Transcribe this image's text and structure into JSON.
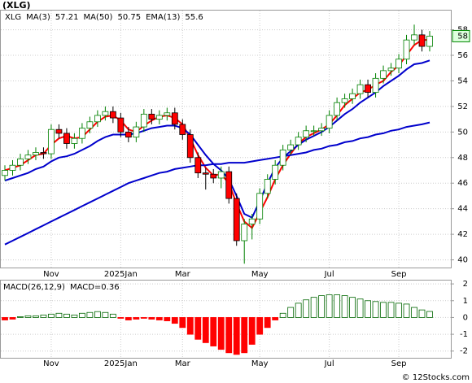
{
  "chart_data": [
    {
      "type": "candlestick",
      "title": "(XLG)",
      "symbol": "XLG",
      "categories": [
        null,
        null,
        null,
        null,
        null,
        null,
        "Nov",
        null,
        null,
        null,
        null,
        null,
        null,
        null,
        null,
        "2025Jan",
        null,
        null,
        null,
        null,
        null,
        null,
        null,
        "Mar",
        null,
        null,
        null,
        null,
        null,
        null,
        null,
        null,
        null,
        "May",
        null,
        null,
        null,
        null,
        null,
        null,
        null,
        null,
        "Jul",
        null,
        null,
        null,
        null,
        null,
        null,
        null,
        null,
        "Sep",
        null,
        null,
        null,
        null
      ],
      "open": [
        46.6,
        47.0,
        47.4,
        47.9,
        48.2,
        48.4,
        48.3,
        50.2,
        49.9,
        49.1,
        49.5,
        50.3,
        50.8,
        51.3,
        51.6,
        51.1,
        50.0,
        49.6,
        50.4,
        51.4,
        51.0,
        51.3,
        51.5,
        50.6,
        49.8,
        48.0,
        46.8,
        46.7,
        46.4,
        46.9,
        44.8,
        41.5,
        42.8,
        43.2,
        45.2,
        46.3,
        47.4,
        48.6,
        49.0,
        49.6,
        50.1,
        50.1,
        50.3,
        51.3,
        52.3,
        52.6,
        53.0,
        53.7,
        53.1,
        54.2,
        54.8,
        55.0,
        55.7,
        57.2,
        57.6,
        56.7
      ],
      "high": [
        47.4,
        47.8,
        48.3,
        48.6,
        48.8,
        48.8,
        50.6,
        50.6,
        50.3,
        49.9,
        50.7,
        51.2,
        51.7,
        52.0,
        52.0,
        51.5,
        50.4,
        50.8,
        51.8,
        51.8,
        51.7,
        51.9,
        51.9,
        51.0,
        50.2,
        48.4,
        47.2,
        47.1,
        47.3,
        47.3,
        45.2,
        43.2,
        43.6,
        45.6,
        46.7,
        47.8,
        49.0,
        49.4,
        50.0,
        50.5,
        50.5,
        50.7,
        51.7,
        52.7,
        53.0,
        53.4,
        54.1,
        54.1,
        54.6,
        55.2,
        55.4,
        56.1,
        57.6,
        58.4,
        58.0,
        57.9
      ],
      "low": [
        46.2,
        46.6,
        47.0,
        47.5,
        47.8,
        47.9,
        47.9,
        49.5,
        48.7,
        48.7,
        49.1,
        49.9,
        50.4,
        50.9,
        50.7,
        49.6,
        49.2,
        49.2,
        50.0,
        50.6,
        50.6,
        50.9,
        50.2,
        49.4,
        47.6,
        46.4,
        45.5,
        46.0,
        45.6,
        44.4,
        41.1,
        39.7,
        41.6,
        42.8,
        44.8,
        45.9,
        47.0,
        48.2,
        48.6,
        49.2,
        49.7,
        49.7,
        49.9,
        50.9,
        51.9,
        52.2,
        52.6,
        52.7,
        52.7,
        53.8,
        54.4,
        54.6,
        55.3,
        56.8,
        56.3,
        56.3
      ],
      "close": [
        47.0,
        47.4,
        47.9,
        48.2,
        48.4,
        48.3,
        50.2,
        49.9,
        49.1,
        49.5,
        50.3,
        50.8,
        51.3,
        51.6,
        51.1,
        50.0,
        49.6,
        50.4,
        51.4,
        51.0,
        51.3,
        51.5,
        50.6,
        49.8,
        48.0,
        46.8,
        46.7,
        46.4,
        46.9,
        44.8,
        41.5,
        42.8,
        43.2,
        45.2,
        46.3,
        47.4,
        48.6,
        49.0,
        49.6,
        50.1,
        50.1,
        50.3,
        51.3,
        52.3,
        52.6,
        53.0,
        53.7,
        53.1,
        54.2,
        54.8,
        55.0,
        55.7,
        57.2,
        57.6,
        56.7,
        57.5
      ],
      "up_color": "#008000",
      "down_color": "#ff0000",
      "series": [
        {
          "name": "MA(3)",
          "current": 57.21,
          "color": "#ff0000",
          "values": [
            47.0,
            47.2,
            47.4,
            47.8,
            48.2,
            48.3,
            49.0,
            49.5,
            49.7,
            49.5,
            49.6,
            50.2,
            50.8,
            51.2,
            51.3,
            50.9,
            50.2,
            50.0,
            50.5,
            50.9,
            51.2,
            51.3,
            51.1,
            50.6,
            49.5,
            48.2,
            47.2,
            46.6,
            46.7,
            46.0,
            44.4,
            43.0,
            42.5,
            43.7,
            44.9,
            46.3,
            47.4,
            48.3,
            49.1,
            49.6,
            49.9,
            50.2,
            50.6,
            51.3,
            52.1,
            52.6,
            53.1,
            53.3,
            53.7,
            54.0,
            54.7,
            55.2,
            56.0,
            56.8,
            57.2,
            57.21
          ]
        },
        {
          "name": "MA(50)",
          "current": 50.75,
          "color": "#0000cc",
          "values": [
            41.2,
            41.5,
            41.8,
            42.1,
            42.4,
            42.7,
            43.0,
            43.3,
            43.6,
            43.9,
            44.2,
            44.5,
            44.8,
            45.1,
            45.4,
            45.7,
            46.0,
            46.2,
            46.4,
            46.6,
            46.8,
            46.9,
            47.1,
            47.2,
            47.3,
            47.4,
            47.4,
            47.5,
            47.5,
            47.6,
            47.6,
            47.6,
            47.7,
            47.8,
            47.9,
            48.0,
            48.1,
            48.2,
            48.3,
            48.4,
            48.6,
            48.7,
            48.9,
            49.0,
            49.2,
            49.3,
            49.5,
            49.6,
            49.8,
            49.9,
            50.1,
            50.2,
            50.4,
            50.5,
            50.6,
            50.75
          ]
        },
        {
          "name": "EMA(13)",
          "current": 55.6,
          "color": "#0000cc",
          "values": [
            46.2,
            46.4,
            46.6,
            46.8,
            47.1,
            47.3,
            47.7,
            48.0,
            48.1,
            48.3,
            48.6,
            48.9,
            49.3,
            49.6,
            49.8,
            49.8,
            49.8,
            49.9,
            50.1,
            50.3,
            50.4,
            50.5,
            50.5,
            50.3,
            49.8,
            49.0,
            48.2,
            47.5,
            47.0,
            46.3,
            45.0,
            43.6,
            43.3,
            44.6,
            46.0,
            47.2,
            48.0,
            48.5,
            49.0,
            49.4,
            49.7,
            50.0,
            50.4,
            50.9,
            51.4,
            51.8,
            52.3,
            52.7,
            53.1,
            53.6,
            54.0,
            54.4,
            54.9,
            55.3,
            55.4,
            55.6
          ]
        }
      ],
      "price_tag": {
        "value": 57.5,
        "label": "58"
      },
      "ylim": [
        39.4,
        59.5
      ],
      "yticks": [
        40,
        42,
        44,
        46,
        48,
        50,
        52,
        54,
        56,
        58
      ],
      "grid": true
    },
    {
      "type": "bar",
      "name": "MACD(26,12,9)",
      "current": {
        "value": 0.36,
        "label": "MACD=0.36"
      },
      "pos_color": "#006600",
      "neg_color": "#ff0000",
      "values": [
        -0.15,
        -0.1,
        0.05,
        0.1,
        0.1,
        0.15,
        0.2,
        0.25,
        0.2,
        0.15,
        0.25,
        0.3,
        0.35,
        0.3,
        0.2,
        -0.05,
        -0.15,
        -0.1,
        -0.05,
        -0.1,
        -0.15,
        -0.2,
        -0.35,
        -0.6,
        -1.0,
        -1.3,
        -1.5,
        -1.7,
        -1.9,
        -2.1,
        -2.2,
        -2.1,
        -1.6,
        -1.0,
        -0.6,
        -0.15,
        0.25,
        0.6,
        0.85,
        1.05,
        1.2,
        1.3,
        1.35,
        1.35,
        1.3,
        1.2,
        1.1,
        1.0,
        0.95,
        0.9,
        0.9,
        0.85,
        0.8,
        0.6,
        0.45,
        0.36
      ],
      "ylim": [
        -2.4,
        2.2
      ],
      "yticks": [
        2,
        1,
        0,
        -1,
        -2
      ],
      "grid": true
    }
  ],
  "footer": "© 12Stocks.com"
}
